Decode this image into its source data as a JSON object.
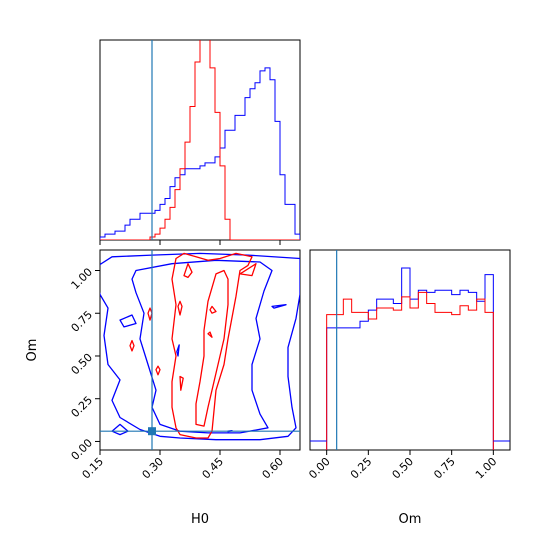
{
  "chart_data": {
    "type": "corner",
    "parameters": [
      "H0",
      "Om"
    ],
    "truth": {
      "H0": 0.28,
      "Om": 0.06
    },
    "colors": {
      "series_a": "#0000ff",
      "series_b": "#ff0000",
      "truth": "#1f77b4"
    },
    "panels": [
      {
        "id": "h0-marginal",
        "type": "histogram-step",
        "xlabel": "",
        "ylabel": "",
        "xlim": [
          0.15,
          0.65
        ],
        "bins": [
          0.15,
          0.1625,
          0.175,
          0.1875,
          0.2,
          0.2125,
          0.225,
          0.2375,
          0.25,
          0.2625,
          0.275,
          0.2875,
          0.3,
          0.3125,
          0.325,
          0.3375,
          0.35,
          0.3625,
          0.375,
          0.3875,
          0.4,
          0.4125,
          0.425,
          0.4375,
          0.45,
          0.4625,
          0.475,
          0.4875,
          0.5,
          0.5125,
          0.525,
          0.5375,
          0.55,
          0.5625,
          0.575,
          0.5875,
          0.6,
          0.6125,
          0.625,
          0.6375,
          0.65
        ],
        "series": [
          {
            "name": "",
            "values": [
              1,
              2,
              2,
              3,
              3,
              5,
              7,
              7,
              9,
              9,
              9,
              10,
              12,
              14,
              18,
              21,
              22,
              24,
              24,
              24,
              25,
              26,
              26,
              28,
              31,
              37,
              37,
              42,
              42,
              48,
              51,
              53,
              57,
              58,
              54,
              40,
              22,
              12,
              12,
              2
            ]
          },
          {
            "name": "",
            "values": [
              0,
              0,
              0,
              0,
              0,
              0,
              0,
              0,
              0,
              0,
              1,
              2,
              4,
              7,
              11,
              17,
              24,
              33,
              45,
              60,
              77,
              74,
              58,
              43,
              25,
              7,
              0,
              0,
              0,
              0,
              0,
              0,
              0,
              0,
              0,
              0,
              0,
              0,
              0,
              0
            ]
          }
        ]
      },
      {
        "id": "h0-om-contour",
        "type": "contour",
        "xlabel": "H0",
        "ylabel": "Om",
        "xlim": [
          0.15,
          0.65
        ],
        "ylim": [
          -0.05,
          1.12
        ],
        "xticks": [
          "0.15",
          "0.30",
          "0.45",
          "0.60"
        ],
        "yticks": [
          "0.00",
          "0.25",
          "0.50",
          "0.75",
          "1.00"
        ],
        "xtick_values": [
          0.15,
          0.3,
          0.45,
          0.6
        ],
        "ytick_values": [
          0.0,
          0.25,
          0.5,
          0.75,
          1.0
        ],
        "series": [
          {
            "name": "",
            "contours": [
              [
                [
                  0.14,
                  1.02
                ],
                [
                  0.18,
                  1.08
                ],
                [
                  0.28,
                  1.09
                ],
                [
                  0.4,
                  1.1
                ],
                [
                  0.52,
                  1.09
                ],
                [
                  0.65,
                  1.07
                ],
                [
                  0.65,
                  0.86
                ],
                [
                  0.64,
                  0.72
                ],
                [
                  0.62,
                  0.55
                ],
                [
                  0.62,
                  0.38
                ],
                [
                  0.63,
                  0.2
                ],
                [
                  0.64,
                  0.08
                ],
                [
                  0.62,
                  0.03
                ],
                [
                  0.55,
                  0.01
                ],
                [
                  0.44,
                  0.01
                ],
                [
                  0.35,
                  0.02
                ],
                [
                  0.3,
                  0.03
                ],
                [
                  0.25,
                  0.07
                ],
                [
                  0.2,
                  0.14
                ],
                [
                  0.18,
                  0.24
                ],
                [
                  0.2,
                  0.36
                ],
                [
                  0.17,
                  0.45
                ],
                [
                  0.16,
                  0.62
                ],
                [
                  0.17,
                  0.78
                ],
                [
                  0.15,
                  0.86
                ],
                [
                  0.14,
                  0.95
                ],
                [
                  0.14,
                  1.02
                ]
              ],
              [
                [
                  0.24,
                  1.0
                ],
                [
                  0.33,
                  1.04
                ],
                [
                  0.44,
                  1.06
                ],
                [
                  0.55,
                  1.05
                ],
                [
                  0.58,
                  1.0
                ],
                [
                  0.56,
                  0.88
                ],
                [
                  0.54,
                  0.72
                ],
                [
                  0.55,
                  0.6
                ],
                [
                  0.53,
                  0.45
                ],
                [
                  0.53,
                  0.3
                ],
                [
                  0.55,
                  0.16
                ],
                [
                  0.57,
                  0.08
                ],
                [
                  0.5,
                  0.05
                ],
                [
                  0.42,
                  0.05
                ],
                [
                  0.35,
                  0.06
                ],
                [
                  0.3,
                  0.1
                ],
                [
                  0.28,
                  0.2
                ],
                [
                  0.29,
                  0.3
                ],
                [
                  0.27,
                  0.45
                ],
                [
                  0.25,
                  0.6
                ],
                [
                  0.26,
                  0.75
                ],
                [
                  0.24,
                  0.87
                ],
                [
                  0.23,
                  0.95
                ],
                [
                  0.24,
                  1.0
                ]
              ],
              [
                [
                  0.18,
                  0.06
                ],
                [
                  0.2,
                  0.1
                ],
                [
                  0.22,
                  0.06
                ],
                [
                  0.2,
                  0.04
                ],
                [
                  0.18,
                  0.06
                ]
              ],
              [
                [
                  0.2,
                  0.71
                ],
                [
                  0.23,
                  0.74
                ],
                [
                  0.24,
                  0.69
                ],
                [
                  0.21,
                  0.67
                ],
                [
                  0.2,
                  0.71
                ]
              ],
              [
                [
                  0.58,
                  0.79
                ],
                [
                  0.615,
                  0.8
                ],
                [
                  0.585,
                  0.78
                ],
                [
                  0.58,
                  0.79
                ]
              ],
              [
                [
                  0.345,
                  0.5
                ],
                [
                  0.348,
                  0.565
                ],
                [
                  0.342,
                  0.525
                ],
                [
                  0.345,
                  0.5
                ]
              ],
              [
                [
                  0.47,
                  0.06
                ],
                [
                  0.48,
                  0.063
                ],
                [
                  0.47,
                  0.057
                ],
                [
                  0.47,
                  0.06
                ]
              ]
            ]
          },
          {
            "name": "",
            "contours": [
              [
                [
                  0.35,
                  0.04
                ],
                [
                  0.39,
                  0.02
                ],
                [
                  0.42,
                  0.02
                ],
                [
                  0.43,
                  0.06
                ],
                [
                  0.44,
                  0.3
                ],
                [
                  0.46,
                  0.45
                ],
                [
                  0.47,
                  0.6
                ],
                [
                  0.49,
                  0.85
                ],
                [
                  0.5,
                  1.0
                ],
                [
                  0.52,
                  1.03
                ],
                [
                  0.53,
                  1.08
                ],
                [
                  0.49,
                  1.1
                ],
                [
                  0.45,
                  1.07
                ],
                [
                  0.42,
                  1.06
                ],
                [
                  0.39,
                  1.08
                ],
                [
                  0.36,
                  1.1
                ],
                [
                  0.34,
                  1.07
                ],
                [
                  0.33,
                  0.95
                ],
                [
                  0.34,
                  0.8
                ],
                [
                  0.33,
                  0.6
                ],
                [
                  0.34,
                  0.5
                ],
                [
                  0.33,
                  0.35
                ],
                [
                  0.33,
                  0.2
                ],
                [
                  0.34,
                  0.08
                ],
                [
                  0.35,
                  0.04
                ]
              ],
              [
                [
                  0.39,
                  0.1
                ],
                [
                  0.41,
                  0.09
                ],
                [
                  0.42,
                  0.2
                ],
                [
                  0.44,
                  0.4
                ],
                [
                  0.46,
                  0.6
                ],
                [
                  0.47,
                  0.8
                ],
                [
                  0.47,
                  0.95
                ],
                [
                  0.46,
                  1.0
                ],
                [
                  0.44,
                  0.98
                ],
                [
                  0.42,
                  0.82
                ],
                [
                  0.41,
                  0.65
                ],
                [
                  0.41,
                  0.5
                ],
                [
                  0.4,
                  0.35
                ],
                [
                  0.39,
                  0.22
                ],
                [
                  0.39,
                  0.1
                ]
              ],
              [
                [
                  0.36,
                  0.97
                ],
                [
                  0.37,
                  1.04
                ],
                [
                  0.38,
                  0.99
                ],
                [
                  0.37,
                  0.96
                ],
                [
                  0.36,
                  0.97
                ]
              ],
              [
                [
                  0.5,
                  0.98
                ],
                [
                  0.54,
                  1.04
                ],
                [
                  0.53,
                  0.97
                ],
                [
                  0.5,
                  0.98
                ]
              ],
              [
                [
                  0.27,
                  0.75
                ],
                [
                  0.275,
                  0.71
                ],
                [
                  0.28,
                  0.75
                ],
                [
                  0.275,
                  0.78
                ],
                [
                  0.27,
                  0.75
                ]
              ],
              [
                [
                  0.345,
                  0.79
                ],
                [
                  0.35,
                  0.74
                ],
                [
                  0.355,
                  0.79
                ],
                [
                  0.35,
                  0.82
                ],
                [
                  0.345,
                  0.79
                ]
              ],
              [
                [
                  0.42,
                  0.63
                ],
                [
                  0.43,
                  0.61
                ],
                [
                  0.425,
                  0.64
                ],
                [
                  0.42,
                  0.63
                ]
              ],
              [
                [
                  0.425,
                  0.77
                ],
                [
                  0.43,
                  0.79
                ],
                [
                  0.44,
                  0.76
                ],
                [
                  0.43,
                  0.75
                ],
                [
                  0.425,
                  0.77
                ]
              ],
              [
                [
                  0.225,
                  0.56
                ],
                [
                  0.23,
                  0.53
                ],
                [
                  0.235,
                  0.56
                ],
                [
                  0.23,
                  0.59
                ],
                [
                  0.225,
                  0.56
                ]
              ],
              [
                [
                  0.35,
                  0.38
                ],
                [
                  0.352,
                  0.3
                ],
                [
                  0.358,
                  0.37
                ],
                [
                  0.35,
                  0.38
                ]
              ],
              [
                [
                  0.29,
                  0.42
                ],
                [
                  0.295,
                  0.39
                ],
                [
                  0.3,
                  0.42
                ],
                [
                  0.295,
                  0.44
                ],
                [
                  0.29,
                  0.42
                ]
              ]
            ]
          }
        ]
      },
      {
        "id": "om-marginal",
        "type": "histogram-step",
        "xlabel": "Om",
        "ylabel": "",
        "xlim": [
          -0.1,
          1.1
        ],
        "xticks": [
          "0.00",
          "0.25",
          "0.50",
          "0.75",
          "1.00"
        ],
        "xtick_values": [
          0.0,
          0.25,
          0.5,
          0.75,
          1.0
        ],
        "bins": [
          0.0,
          0.05,
          0.1,
          0.15,
          0.2,
          0.25,
          0.3,
          0.35,
          0.4,
          0.45,
          0.5,
          0.55,
          0.6,
          0.65,
          0.7,
          0.75,
          0.8,
          0.85,
          0.9,
          0.95,
          1.0
        ],
        "series": [
          {
            "name": "",
            "values": [
              55,
              55,
              55,
              55,
              58,
              63,
              68,
              68,
              66,
              82,
              68,
              72,
              71,
              72,
              72,
              70,
              72,
              71,
              67,
              79
            ]
          },
          {
            "name": "",
            "values": [
              61,
              61,
              68,
              62,
              62,
              59,
              64,
              64,
              63,
              69,
              64,
              71,
              66,
              62,
              62,
              61,
              65,
              63,
              68,
              62
            ]
          }
        ]
      }
    ]
  }
}
